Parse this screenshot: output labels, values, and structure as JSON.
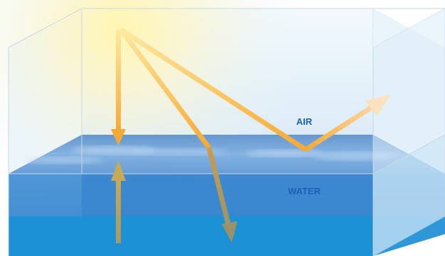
{
  "labels": {
    "air": "AIR",
    "water": "WATER"
  },
  "colors": {
    "sunlight": "#fff6b0",
    "ray_bright": "#f9b233",
    "ray_dim": "#a89a64",
    "water_surface": "#5b95d6",
    "water_body": "#3a86cf",
    "water_deep": "#1d91d6",
    "label": "#1f5fb8"
  }
}
